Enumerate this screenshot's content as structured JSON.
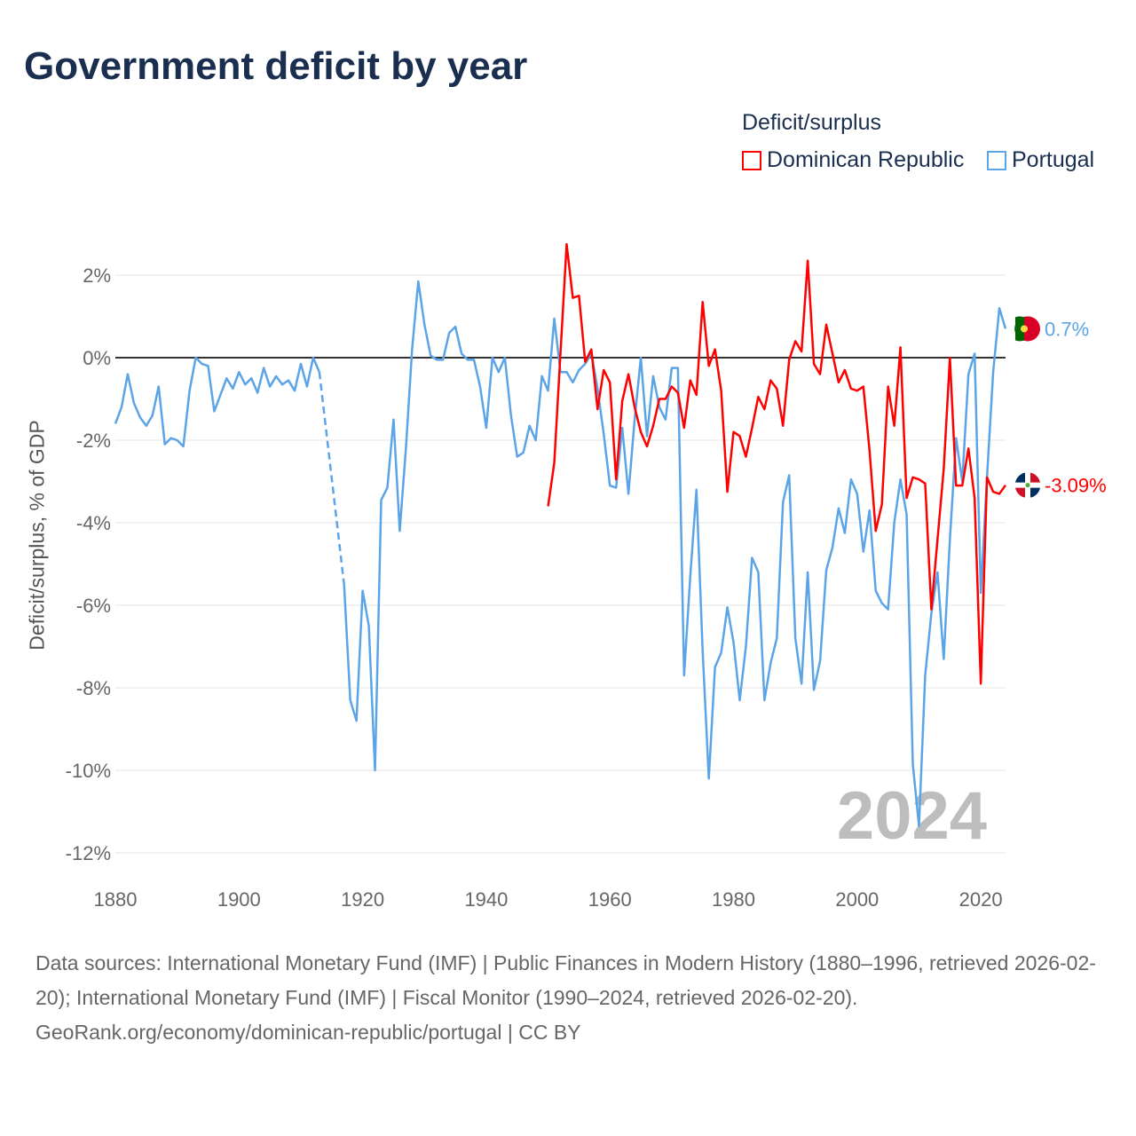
{
  "title": "Government deficit by year",
  "legend": {
    "title": "Deficit/surplus",
    "items": [
      "Dominican Republic",
      "Portugal"
    ]
  },
  "colors": {
    "dominican_republic": "#ff0000",
    "portugal": "#5ba4e8"
  },
  "year_watermark": "2024",
  "footer": {
    "sources": "Data sources: International Monetary Fund (IMF) | Public Finances in Modern History (1880–1996, retrieved 2026-02-20); International Monetary Fund (IMF) | Fiscal Monitor (1990–2024, retrieved 2026-02-20).",
    "credit": "GeoRank.org/economy/dominican-republic/portugal | CC BY"
  },
  "chart_data": {
    "type": "line",
    "title": "Government deficit by year",
    "xlabel": "",
    "ylabel": "Deficit/surplus, % of GDP",
    "xlim": [
      1880,
      2024
    ],
    "ylim": [
      -12,
      2.8
    ],
    "x_ticks": [
      1880,
      1900,
      1920,
      1940,
      1960,
      1980,
      2000,
      2020
    ],
    "x_tick_labels": [
      "1880",
      "1900",
      "1920",
      "1940",
      "1960",
      "1980",
      "2000",
      "2020"
    ],
    "y_ticks": [
      2,
      0,
      -2,
      -4,
      -6,
      -8,
      -10,
      -12
    ],
    "y_tick_labels": [
      "2%",
      "0%",
      "-2%",
      "-4%",
      "-6%",
      "-8%",
      "-10%",
      "-12%"
    ],
    "end_labels": {
      "Portugal": "0.7%",
      "Dominican Republic": "-3.09%"
    },
    "series": [
      {
        "name": "Portugal",
        "start_year": 1880,
        "values": [
          -1.6,
          -1.2,
          -0.4,
          -1.1,
          -1.45,
          -1.65,
          -1.4,
          -0.7,
          -2.1,
          -1.95,
          -2.0,
          -2.15,
          -0.8,
          0,
          -0.15,
          -0.2,
          -1.3,
          -0.9,
          -0.5,
          -0.75,
          -0.35,
          -0.65,
          -0.5,
          -0.85,
          -0.25,
          -0.7,
          -0.45,
          -0.65,
          -0.55,
          -0.8,
          -0.15,
          -0.7,
          0,
          -0.35,
          null,
          null,
          null,
          -5.5,
          -8.3,
          -8.8,
          -5.65,
          -6.5,
          -10.0,
          -3.45,
          -3.15,
          -1.5,
          -4.2,
          -2.2,
          0.2,
          1.85,
          0.8,
          0.05,
          -0.05,
          -0.05,
          0.6,
          0.75,
          0.1,
          -0.05,
          -0.05,
          -0.7,
          -1.7,
          0,
          -0.35,
          0,
          -1.4,
          -2.4,
          -2.3,
          -1.65,
          -2.0,
          -0.45,
          -0.8,
          0.95,
          -0.35,
          -0.35,
          -0.6,
          -0.3,
          -0.15,
          0.1,
          -0.75,
          -1.85,
          -3.1,
          -3.15,
          -1.7,
          -3.3,
          -1.5,
          0,
          -1.9,
          -0.45,
          -1.2,
          -1.5,
          -0.25,
          -0.25,
          -7.7,
          -5.3,
          -3.2,
          -7.1,
          -10.2,
          -7.5,
          -7.15,
          -6.05,
          -6.9,
          -8.3,
          -7.0,
          -4.85,
          -5.2,
          -8.3,
          -7.4,
          -6.8,
          -3.5,
          -2.85,
          -6.8,
          -7.9,
          -5.2,
          -8.05,
          -7.35,
          -5.15,
          -4.6,
          -3.65,
          -4.25,
          -2.95,
          -3.3,
          -4.7,
          -3.7,
          -5.65,
          -5.95,
          -6.1,
          -4.0,
          -2.95,
          -3.8,
          -9.85,
          -11.35,
          -7.7,
          -6.2,
          -5.2,
          -7.3,
          -4.4,
          -1.95,
          -3.0,
          -0.4,
          0.1,
          -5.7,
          -2.9,
          -0.35,
          1.2,
          0.7
        ]
      },
      {
        "name": "Dominican Republic",
        "start_year": 1950,
        "values": [
          -3.6,
          -2.55,
          0.1,
          2.75,
          1.45,
          1.5,
          -0.1,
          0.2,
          -1.25,
          -0.3,
          -0.6,
          -2.95,
          -1.05,
          -0.4,
          -1.2,
          -1.8,
          -2.15,
          -1.65,
          -1.0,
          -1.0,
          -0.7,
          -0.85,
          -1.7,
          -0.55,
          -0.9,
          1.35,
          -0.2,
          0.2,
          -0.8,
          -3.25,
          -1.8,
          -1.9,
          -2.4,
          -1.7,
          -0.95,
          -1.25,
          -0.55,
          -0.75,
          -1.65,
          -0.05,
          0.4,
          0.15,
          2.35,
          -0.15,
          -0.4,
          0.8,
          0.1,
          -0.6,
          -0.3,
          -0.75,
          -0.8,
          -0.7,
          -2.25,
          -4.2,
          -3.55,
          -0.7,
          -1.65,
          0.25,
          -3.4,
          -2.9,
          -2.95,
          -3.05,
          -6.1,
          -4.4,
          -2.7,
          0,
          -3.1,
          -3.1,
          -2.2,
          -3.4,
          -7.9,
          -2.9,
          -3.25,
          -3.3,
          -3.09
        ]
      }
    ]
  }
}
